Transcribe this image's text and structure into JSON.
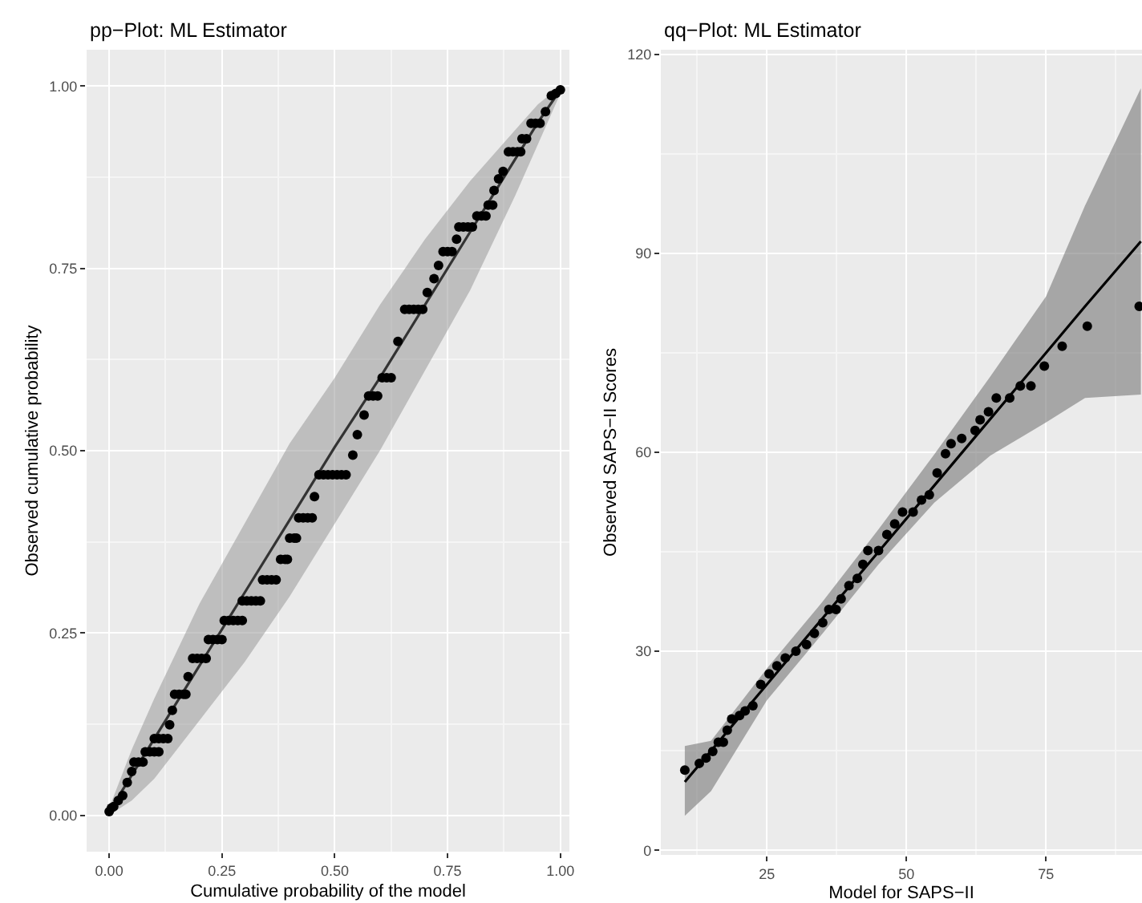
{
  "chart_data": [
    {
      "type": "scatter",
      "title": "pp−Plot: ML Estimator",
      "xlabel": "Cumulative probability of the model",
      "ylabel": "Observed cumulative probability",
      "xlim": [
        -0.05,
        1.02
      ],
      "ylim": [
        -0.05,
        1.05
      ],
      "xticks": [
        {
          "value": 0,
          "label": "0.00"
        },
        {
          "value": 0.25,
          "label": "0.25"
        },
        {
          "value": 0.5,
          "label": "0.50"
        },
        {
          "value": 0.75,
          "label": "0.75"
        },
        {
          "value": 1,
          "label": "1.00"
        }
      ],
      "yticks": [
        {
          "value": 0,
          "label": "0.00"
        },
        {
          "value": 0.25,
          "label": "0.25"
        },
        {
          "value": 0.5,
          "label": "0.50"
        },
        {
          "value": 0.75,
          "label": "0.75"
        },
        {
          "value": 1,
          "label": "1.00"
        }
      ],
      "grid": true,
      "series": [
        {
          "type": "line",
          "color": "#333333",
          "marker": "none",
          "line_style": "solid",
          "x": [
            0,
            0.05,
            0.1,
            0.2,
            0.3,
            0.4,
            0.5,
            0.6,
            0.7,
            0.8,
            0.9,
            0.95,
            1.0
          ],
          "values": [
            0.005,
            0.055,
            0.105,
            0.205,
            0.305,
            0.405,
            0.505,
            0.6,
            0.7,
            0.8,
            0.9,
            0.95,
            0.995
          ],
          "lower": [
            0,
            0.02,
            0.05,
            0.13,
            0.21,
            0.3,
            0.4,
            0.5,
            0.61,
            0.72,
            0.85,
            0.92,
            0.99
          ],
          "upper": [
            0.01,
            0.09,
            0.16,
            0.29,
            0.4,
            0.51,
            0.6,
            0.7,
            0.79,
            0.87,
            0.94,
            0.975,
            1.0
          ]
        },
        {
          "color": "#000000",
          "marker": "circle",
          "x": [
            0.0,
            0.005,
            0.01,
            0.02,
            0.03,
            0.04,
            0.05,
            0.055,
            0.065,
            0.075,
            0.08,
            0.09,
            0.1,
            0.11,
            0.1,
            0.11,
            0.12,
            0.13,
            0.134,
            0.14,
            0.145,
            0.155,
            0.165,
            0.17,
            0.175,
            0.185,
            0.195,
            0.205,
            0.215,
            0.22,
            0.23,
            0.24,
            0.25,
            0.255,
            0.265,
            0.275,
            0.285,
            0.295,
            0.295,
            0.305,
            0.315,
            0.325,
            0.335,
            0.34,
            0.35,
            0.36,
            0.37,
            0.38,
            0.39,
            0.395,
            0.4,
            0.41,
            0.415,
            0.42,
            0.43,
            0.44,
            0.45,
            0.455,
            0.465,
            0.475,
            0.485,
            0.495,
            0.505,
            0.515,
            0.525,
            0.54,
            0.55,
            0.565,
            0.575,
            0.585,
            0.595,
            0.605,
            0.615,
            0.625,
            0.64,
            0.655,
            0.665,
            0.675,
            0.685,
            0.695,
            0.705,
            0.72,
            0.73,
            0.74,
            0.75,
            0.76,
            0.77,
            0.775,
            0.785,
            0.795,
            0.805,
            0.815,
            0.825,
            0.835,
            0.84,
            0.85,
            0.853,
            0.863,
            0.873,
            0.885,
            0.895,
            0.905,
            0.912,
            0.915,
            0.925,
            0.935,
            0.945,
            0.955,
            0.967,
            0.98,
            0.99,
            1.0
          ],
          "values": [
            0.005,
            0.01,
            0.012,
            0.02,
            0.027,
            0.045,
            0.06,
            0.073,
            0.073,
            0.073,
            0.087,
            0.087,
            0.087,
            0.087,
            0.105,
            0.105,
            0.105,
            0.105,
            0.124,
            0.144,
            0.166,
            0.166,
            0.166,
            0.166,
            0.19,
            0.215,
            0.215,
            0.215,
            0.215,
            0.241,
            0.241,
            0.241,
            0.241,
            0.267,
            0.267,
            0.267,
            0.267,
            0.267,
            0.294,
            0.294,
            0.294,
            0.294,
            0.294,
            0.323,
            0.323,
            0.323,
            0.323,
            0.351,
            0.351,
            0.351,
            0.38,
            0.38,
            0.38,
            0.408,
            0.408,
            0.408,
            0.408,
            0.437,
            0.467,
            0.467,
            0.467,
            0.467,
            0.467,
            0.467,
            0.467,
            0.494,
            0.522,
            0.549,
            0.575,
            0.575,
            0.575,
            0.6,
            0.6,
            0.6,
            0.65,
            0.694,
            0.694,
            0.694,
            0.694,
            0.694,
            0.717,
            0.736,
            0.754,
            0.773,
            0.773,
            0.773,
            0.79,
            0.807,
            0.807,
            0.807,
            0.807,
            0.822,
            0.822,
            0.822,
            0.837,
            0.837,
            0.857,
            0.873,
            0.883,
            0.91,
            0.91,
            0.91,
            0.91,
            0.928,
            0.928,
            0.949,
            0.949,
            0.949,
            0.965,
            0.987,
            0.99,
            0.995
          ]
        }
      ]
    },
    {
      "type": "scatter",
      "title": "qq−Plot: ML Estimator",
      "xlabel": "Model for SAPS−II",
      "ylabel": "Observed SAPS−II Scores",
      "xlim": [
        6,
        92.2
      ],
      "ylim": [
        -0.7,
        120.7
      ],
      "xticks": [
        25,
        50,
        75
      ],
      "yticks": [
        0,
        30,
        60,
        90,
        120
      ],
      "grid": true,
      "series": [
        {
          "type": "line",
          "color": "#000000",
          "marker": "none",
          "line_style": "solid",
          "x": [
            10.3,
            15,
            25,
            35,
            45,
            55,
            65,
            75,
            82,
            92
          ],
          "values": [
            10.3,
            15,
            25,
            35,
            45,
            55,
            65,
            75,
            82,
            91.8
          ],
          "lower": [
            5.2,
            8.9,
            22.6,
            32.7,
            43.1,
            52.4,
            59.5,
            64.5,
            68.2,
            68.7
          ],
          "upper": [
            15.7,
            16.5,
            27.4,
            37.5,
            48.4,
            59.7,
            71.4,
            83.5,
            97.2,
            114.9
          ]
        },
        {
          "color": "#000000",
          "marker": "circle",
          "x": [
            10.3,
            12.9,
            14.1,
            15.3,
            16.3,
            17.2,
            17.9,
            18.7,
            20.1,
            21.1,
            22.5,
            23.9,
            25.4,
            26.8,
            28.3,
            30.2,
            32.1,
            33.5,
            35.0,
            36.1,
            37.4,
            38.3,
            39.7,
            41.2,
            42.2,
            43.1,
            45.0,
            46.5,
            47.9,
            49.3,
            51.2,
            52.7,
            54.1,
            55.5,
            57.0,
            58.0,
            59.9,
            62.3,
            63.2,
            64.7,
            66.1,
            68.5,
            70.4,
            72.3,
            74.7,
            77.9,
            82.4,
            91.7
          ],
          "values": [
            12.1,
            13.1,
            13.9,
            14.9,
            16.3,
            16.3,
            18.1,
            19.8,
            20.3,
            21.0,
            21.8,
            25.0,
            26.6,
            27.8,
            29.0,
            30.0,
            31.0,
            32.7,
            34.3,
            36.3,
            36.3,
            37.9,
            39.9,
            41.0,
            43.1,
            45.2,
            45.2,
            47.6,
            49.2,
            51.0,
            51.0,
            52.8,
            53.6,
            56.9,
            59.8,
            61.3,
            62.1,
            63.3,
            64.9,
            66.1,
            68.2,
            68.2,
            70.0,
            70.0,
            73.0,
            76.0,
            79.0,
            82.0
          ]
        }
      ]
    }
  ]
}
